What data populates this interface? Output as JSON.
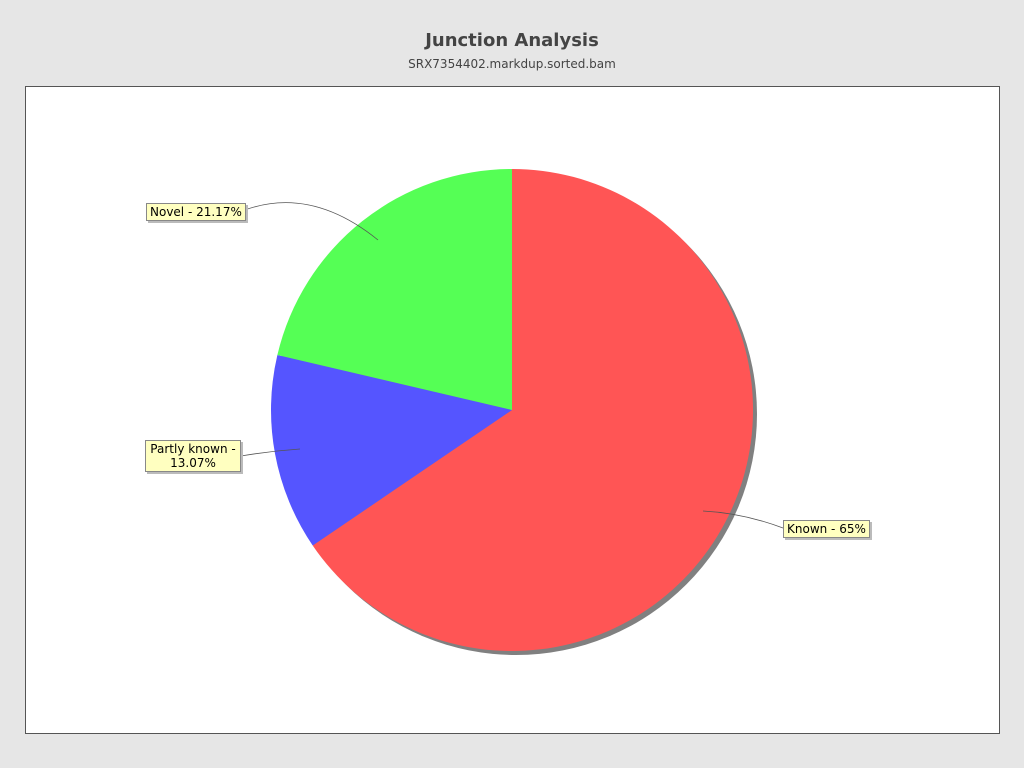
{
  "chart_data": {
    "type": "pie",
    "title": "Junction Analysis",
    "subtitle": "SRX7354402.markdup.sorted.bam",
    "slices": [
      {
        "name": "Known",
        "value": 65,
        "label": "Known - 65%",
        "color": "#ff5555"
      },
      {
        "name": "Partly known",
        "value": 13.07,
        "label": "Partly known - 13.07%",
        "color": "#5555ff"
      },
      {
        "name": "Novel",
        "value": 21.17,
        "label": "Novel - 21.17%",
        "color": "#55ff55"
      }
    ],
    "start_angle": "top, clockwise",
    "shadow": true,
    "legend": "none"
  }
}
